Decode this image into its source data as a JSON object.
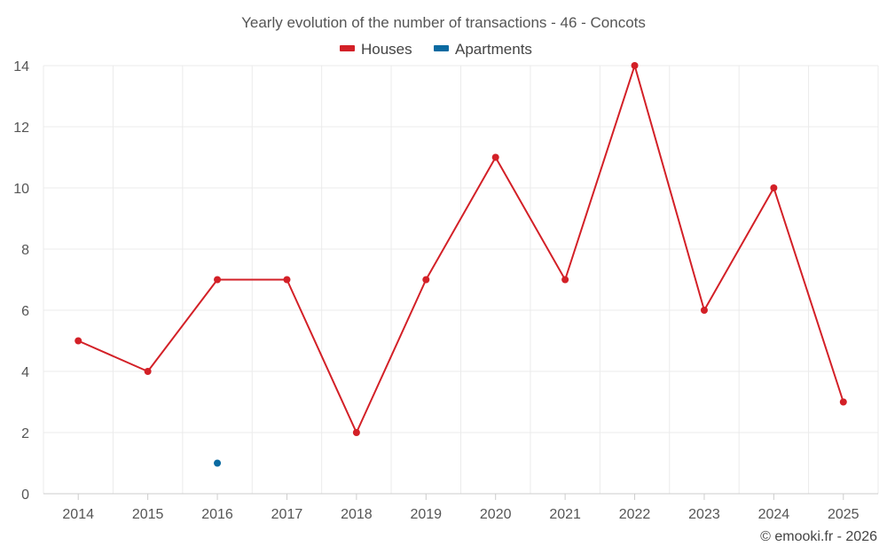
{
  "chart_data": {
    "type": "line",
    "title": "Yearly evolution of the number of transactions - 46 - Concots",
    "categories": [
      "2014",
      "2015",
      "2016",
      "2017",
      "2018",
      "2019",
      "2020",
      "2021",
      "2022",
      "2023",
      "2024",
      "2025"
    ],
    "series": [
      {
        "name": "Houses",
        "color": "#d32027",
        "values": [
          5,
          4,
          7,
          7,
          2,
          7,
          11,
          7,
          14,
          6,
          10,
          3
        ]
      },
      {
        "name": "Apartments",
        "color": "#0a6aa1",
        "values": [
          null,
          null,
          1,
          null,
          null,
          null,
          null,
          null,
          null,
          null,
          null,
          null
        ]
      }
    ],
    "ylim": [
      0,
      14
    ],
    "yticks": [
      0,
      2,
      4,
      6,
      8,
      10,
      12,
      14
    ],
    "xlabel": "",
    "ylabel": "",
    "grid": true,
    "legend": "top-center"
  },
  "credit": "© emooki.fr - 2026"
}
